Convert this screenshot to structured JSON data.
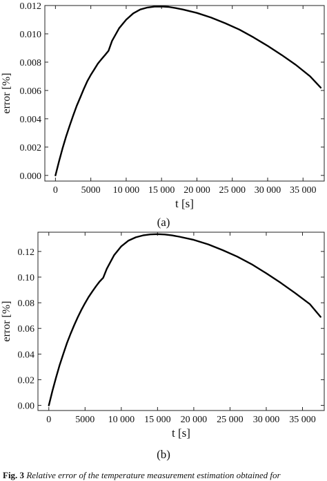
{
  "chart_data": [
    {
      "type": "line",
      "panel_label": "(a)",
      "xlabel": "t [s]",
      "ylabel": "error [%]",
      "xlim": [
        -1500,
        38000
      ],
      "ylim": [
        -0.0004,
        0.012
      ],
      "x_ticks": [
        0,
        5000,
        10000,
        15000,
        20000,
        25000,
        30000,
        35000
      ],
      "x_tick_labels": [
        "0",
        "5000",
        "10 000",
        "15 000",
        "20 000",
        "25 000",
        "30 000",
        "35 000"
      ],
      "y_ticks": [
        0,
        0.002,
        0.004,
        0.006,
        0.008,
        0.01,
        0.012
      ],
      "y_tick_labels": [
        "0.000",
        "0.002",
        "0.004",
        "0.006",
        "0.008",
        "0.010",
        "0.012"
      ],
      "grid": false,
      "series": [
        {
          "x": [
            0,
            500,
            1000,
            1500,
            2000,
            2500,
            3000,
            3500,
            4000,
            4500,
            5000,
            5500,
            6000,
            6500,
            7000,
            7500,
            8000,
            9000,
            10000,
            11000,
            12000,
            13000,
            14000,
            15000,
            16000,
            17000,
            18000,
            20000,
            22000,
            24000,
            26000,
            28000,
            30000,
            32000,
            34000,
            36000,
            37500
          ],
          "y": [
            0.0,
            0.00098,
            0.0019,
            0.00275,
            0.0035,
            0.00422,
            0.0049,
            0.0055,
            0.0061,
            0.00665,
            0.0071,
            0.0075,
            0.0079,
            0.0082,
            0.0085,
            0.0088,
            0.0095,
            0.0104,
            0.011,
            0.01145,
            0.01172,
            0.01186,
            0.01192,
            0.01193,
            0.0119,
            0.01182,
            0.01172,
            0.01148,
            0.01115,
            0.01075,
            0.0103,
            0.00975,
            0.00915,
            0.0085,
            0.0078,
            0.007,
            0.0062
          ]
        }
      ]
    },
    {
      "type": "line",
      "panel_label": "(b)",
      "xlabel": "t [s]",
      "ylabel": "error [%]",
      "xlim": [
        -1500,
        38000
      ],
      "ylim": [
        -0.004,
        0.135
      ],
      "x_ticks": [
        0,
        5000,
        10000,
        15000,
        20000,
        25000,
        30000,
        35000
      ],
      "x_tick_labels": [
        "0",
        "5000",
        "10 000",
        "15 000",
        "20 000",
        "25 000",
        "30 000",
        "35 000"
      ],
      "y_ticks": [
        0,
        0.02,
        0.04,
        0.06,
        0.08,
        0.1,
        0.12
      ],
      "y_tick_labels": [
        "0.00",
        "0.02",
        "0.04",
        "0.06",
        "0.08",
        "0.10",
        "0.12"
      ],
      "grid": false,
      "series": [
        {
          "x": [
            0,
            500,
            1000,
            1500,
            2000,
            2500,
            3000,
            3500,
            4000,
            4500,
            5000,
            5500,
            6000,
            6500,
            7000,
            7500,
            8000,
            9000,
            10000,
            11000,
            12000,
            13000,
            14000,
            15000,
            16000,
            17000,
            18000,
            20000,
            22000,
            24000,
            26000,
            28000,
            30000,
            32000,
            34000,
            36000,
            37500
          ],
          "y": [
            0.0,
            0.0113,
            0.0218,
            0.0315,
            0.0402,
            0.0485,
            0.0558,
            0.0625,
            0.0688,
            0.0745,
            0.0797,
            0.0845,
            0.0888,
            0.0928,
            0.0965,
            0.0995,
            0.1065,
            0.117,
            0.124,
            0.1285,
            0.131,
            0.1325,
            0.1333,
            0.1335,
            0.1332,
            0.1325,
            0.1315,
            0.129,
            0.1255,
            0.121,
            0.116,
            0.11,
            0.103,
            0.0955,
            0.0875,
            0.079,
            0.069
          ]
        }
      ]
    }
  ],
  "caption": {
    "prefix": "Fig. 3",
    "text": " Relative error of the temperature measurement estimation obtained for"
  }
}
